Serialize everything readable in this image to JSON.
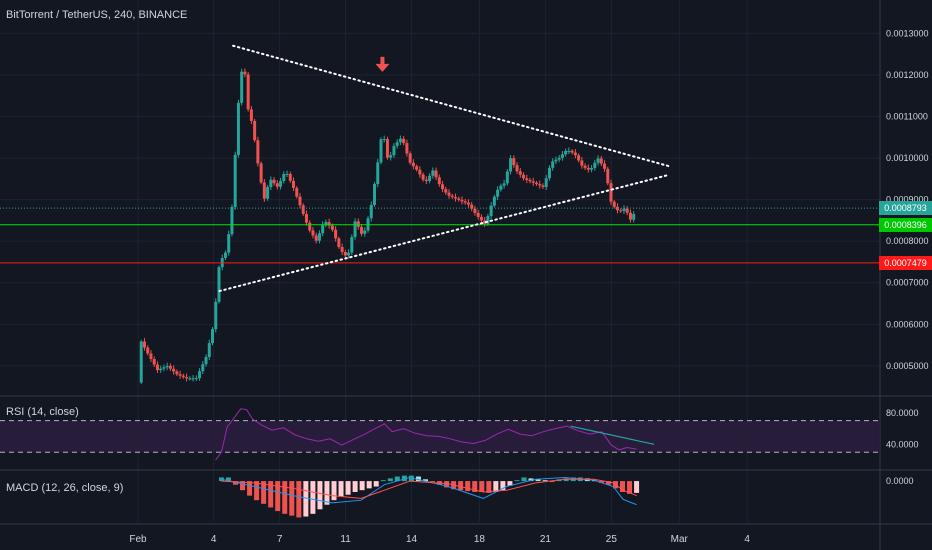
{
  "title": "BitTorrent / TetherUS, 240, BINANCE",
  "colors": {
    "background": "#131722",
    "grid": "#1f2330",
    "text": "#d1d4dc",
    "up": "#26a69a",
    "down": "#ef5350",
    "pattern": "#ffffff",
    "green_line": "#00e600",
    "red_line": "#ff1a1a",
    "rsi_line": "#9c27b0",
    "rsi_band": "#2a1e3d",
    "macd_line": "#2196f3",
    "signal_line": "#ff5252"
  },
  "chart_data": {
    "type": "candlestick",
    "x_ticks": [
      "Feb",
      "4",
      "7",
      "11",
      "14",
      "18",
      "21",
      "25",
      "Mar",
      "4"
    ],
    "price_axis": {
      "ticks": [
        "0.0013000",
        "0.0012000",
        "0.0011000",
        "0.0010000",
        "0.0009000",
        "0.0008000",
        "0.0007000",
        "0.0006000",
        "0.0005000"
      ],
      "ylim": [
        0.00043,
        0.00138
      ]
    },
    "price_tags": [
      {
        "label": "0.0008793",
        "value": 0.0008793,
        "color": "#26a69a"
      },
      {
        "label": "0.0008396",
        "value": 0.0008396,
        "color": "#00c800"
      },
      {
        "label": "0.0007479",
        "value": 0.0007479,
        "color": "#ff1a1a"
      }
    ],
    "horizontal_lines": [
      {
        "value": 0.0008396,
        "color": "#00e600"
      },
      {
        "value": 0.0007479,
        "color": "#ff1a1a"
      }
    ],
    "pattern": {
      "type": "symmetrical triangle",
      "upper_line": [
        [
          4.9,
          0.00127
        ],
        [
          27.4,
          0.00098
        ]
      ],
      "lower_line": [
        [
          4.2,
          0.00068
        ],
        [
          27.4,
          0.00096
        ]
      ],
      "arrow_at": [
        12.6,
        0.0012
      ]
    },
    "price_path": [
      [
        0.0,
        0.00046
      ],
      [
        0.15,
        0.00056
      ],
      [
        0.5,
        0.00053
      ],
      [
        1.0,
        0.00049
      ],
      [
        1.5,
        0.0005
      ],
      [
        2.0,
        0.00048
      ],
      [
        2.5,
        0.00047
      ],
      [
        3.0,
        0.00047
      ],
      [
        3.5,
        0.00052
      ],
      [
        3.9,
        0.0006
      ],
      [
        4.2,
        0.00075
      ],
      [
        4.5,
        0.00077
      ],
      [
        4.8,
        0.00085
      ],
      [
        5.0,
        0.001
      ],
      [
        5.2,
        0.00115
      ],
      [
        5.45,
        0.00125
      ],
      [
        5.6,
        0.00113
      ],
      [
        5.9,
        0.00108
      ],
      [
        6.2,
        0.00098
      ],
      [
        6.5,
        0.0009
      ],
      [
        6.8,
        0.00095
      ],
      [
        7.2,
        0.00093
      ],
      [
        7.6,
        0.00097
      ],
      [
        8.0,
        0.00093
      ],
      [
        8.4,
        0.00088
      ],
      [
        8.8,
        0.00083
      ],
      [
        9.2,
        0.0008
      ],
      [
        9.6,
        0.00085
      ],
      [
        10.0,
        0.00083
      ],
      [
        10.4,
        0.00078
      ],
      [
        10.8,
        0.00076
      ],
      [
        11.2,
        0.00085
      ],
      [
        11.6,
        0.00081
      ],
      [
        12.0,
        0.00088
      ],
      [
        12.3,
        0.00097
      ],
      [
        12.6,
        0.00107
      ],
      [
        12.9,
        0.00099
      ],
      [
        13.2,
        0.00103
      ],
      [
        13.6,
        0.00105
      ],
      [
        14.0,
        0.00099
      ],
      [
        14.4,
        0.00097
      ],
      [
        14.8,
        0.00094
      ],
      [
        15.2,
        0.00097
      ],
      [
        15.6,
        0.00093
      ],
      [
        16.0,
        0.00091
      ],
      [
        16.5,
        0.0009
      ],
      [
        17.0,
        0.00089
      ],
      [
        17.5,
        0.00086
      ],
      [
        17.9,
        0.00084
      ],
      [
        18.3,
        0.0009
      ],
      [
        18.6,
        0.00093
      ],
      [
        18.9,
        0.00094
      ],
      [
        19.2,
        0.001
      ],
      [
        19.5,
        0.00097
      ],
      [
        19.9,
        0.00095
      ],
      [
        20.4,
        0.00094
      ],
      [
        20.9,
        0.00093
      ],
      [
        21.3,
        0.00099
      ],
      [
        21.7,
        0.001
      ],
      [
        22.1,
        0.00102
      ],
      [
        22.5,
        0.00101
      ],
      [
        22.9,
        0.00098
      ],
      [
        23.3,
        0.00097
      ],
      [
        23.7,
        0.001
      ],
      [
        24.1,
        0.00097
      ],
      [
        24.4,
        0.00089
      ],
      [
        24.8,
        0.00087
      ],
      [
        25.1,
        0.00088
      ],
      [
        25.4,
        0.00085
      ],
      [
        25.7,
        0.00088
      ]
    ],
    "rsi": {
      "label": "RSI (14, close)",
      "ticks": [
        "80.0000",
        "40.0000"
      ],
      "ylim": [
        10,
        100
      ],
      "bands": [
        70,
        30
      ],
      "path": [
        [
          4.0,
          20
        ],
        [
          4.3,
          30
        ],
        [
          4.6,
          62
        ],
        [
          5.0,
          75
        ],
        [
          5.3,
          85
        ],
        [
          5.6,
          84
        ],
        [
          5.9,
          72
        ],
        [
          6.4,
          64
        ],
        [
          6.9,
          58
        ],
        [
          7.5,
          61
        ],
        [
          8.1,
          52
        ],
        [
          8.7,
          47
        ],
        [
          9.3,
          44
        ],
        [
          9.9,
          47
        ],
        [
          10.5,
          39
        ],
        [
          11.1,
          46
        ],
        [
          11.7,
          53
        ],
        [
          12.3,
          61
        ],
        [
          12.7,
          66
        ],
        [
          13.1,
          56
        ],
        [
          13.7,
          60
        ],
        [
          14.3,
          54
        ],
        [
          14.9,
          51
        ],
        [
          15.5,
          50
        ],
        [
          16.1,
          47
        ],
        [
          16.7,
          43
        ],
        [
          17.3,
          41
        ],
        [
          17.9,
          45
        ],
        [
          18.5,
          53
        ],
        [
          19.1,
          59
        ],
        [
          19.7,
          53
        ],
        [
          20.3,
          51
        ],
        [
          20.9,
          56
        ],
        [
          21.5,
          60
        ],
        [
          22.1,
          63
        ],
        [
          22.7,
          57
        ],
        [
          23.3,
          53
        ],
        [
          23.9,
          56
        ],
        [
          24.4,
          39
        ],
        [
          24.8,
          33
        ],
        [
          25.2,
          36
        ],
        [
          25.7,
          34
        ]
      ],
      "trendline": [
        [
          22.3,
          63
        ],
        [
          26.6,
          40
        ]
      ]
    },
    "macd": {
      "label": "MACD (12, 26, close, 9)",
      "ticks": [
        "0.0000"
      ],
      "ylim": [
        -4.5e-05,
        1e-05
      ],
      "histogram": [
        4e-06,
        4e-06,
        -4e-06,
        -1e-05,
        -1.6e-05,
        -2.1e-05,
        -2.5e-05,
        -2.9e-05,
        -3.3e-05,
        -3.6e-05,
        -3.8e-05,
        -4e-05,
        -3.9e-05,
        -3.6e-05,
        -3.1e-05,
        -2.6e-05,
        -2.1e-05,
        -1.7e-05,
        -1.5e-05,
        -1.2e-05,
        -1e-05,
        -8e-06,
        -6e-06,
        1e-06,
        3e-06,
        5e-06,
        6e-06,
        6e-06,
        5e-06,
        2e-06,
        -1e-06,
        -4e-06,
        -7e-06,
        -9e-06,
        -1e-05,
        -1.1e-05,
        -1.2e-05,
        -1.2e-05,
        -1.3e-05,
        -1.2e-05,
        -1e-05,
        -5e-06,
        1e-06,
        4e-06,
        3e-06,
        2e-06,
        1e-06,
        -1e-06,
        2e-06,
        3e-06,
        4e-06,
        4e-06,
        3e-06,
        1e-06,
        -2e-06,
        -4e-06,
        -8e-06,
        -1.2e-05,
        -1.4e-05,
        -1.3e-05
      ],
      "hist_x_range": [
        4.3,
        25.7
      ],
      "macd_line": [
        [
          4.3,
          2e-06
        ],
        [
          6.0,
          -6e-06
        ],
        [
          8.0,
          -1.6e-05
        ],
        [
          10.0,
          -2.4e-05
        ],
        [
          11.5,
          -2.1e-05
        ],
        [
          12.7,
          -4e-06
        ],
        [
          14.0,
          4e-06
        ],
        [
          16.0,
          -6e-06
        ],
        [
          17.8,
          -1.9e-05
        ],
        [
          19.0,
          -6e-06
        ],
        [
          20.5,
          2e-06
        ],
        [
          22.0,
          4e-06
        ],
        [
          23.5,
          1e-06
        ],
        [
          24.5,
          -6e-06
        ],
        [
          25.0,
          -2e-05
        ],
        [
          25.7,
          -2.6e-05
        ]
      ],
      "signal_line": [
        [
          4.3,
          0.0
        ],
        [
          6.0,
          -2e-06
        ],
        [
          8.0,
          -8e-06
        ],
        [
          10.0,
          -1.6e-05
        ],
        [
          11.5,
          -1.9e-05
        ],
        [
          12.7,
          -1e-05
        ],
        [
          14.0,
          0.0
        ],
        [
          16.0,
          -3e-06
        ],
        [
          17.8,
          -1.2e-05
        ],
        [
          19.0,
          -1e-05
        ],
        [
          20.5,
          -2e-06
        ],
        [
          22.0,
          2e-06
        ],
        [
          23.5,
          2e-06
        ],
        [
          24.5,
          -2e-06
        ],
        [
          25.0,
          -1e-05
        ],
        [
          25.7,
          -1.6e-05
        ]
      ]
    }
  }
}
